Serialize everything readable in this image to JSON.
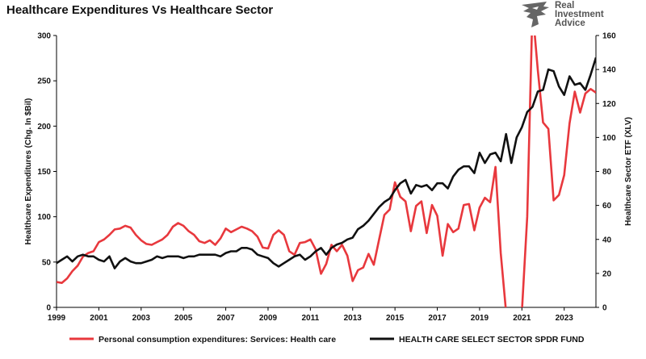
{
  "title": "Healthcare Expenditures Vs Healthcare Sector",
  "logo": {
    "line1": "Real",
    "line2": "Investment",
    "line3": "Advice",
    "color": "#555555"
  },
  "chart_data": {
    "type": "line",
    "title": "Healthcare Expenditures Vs Healthcare Sector",
    "xlabel": "",
    "x_ticks": [
      "1999",
      "2001",
      "2003",
      "2005",
      "2007",
      "2009",
      "2011",
      "2013",
      "2015",
      "2017",
      "2019",
      "2021",
      "2023"
    ],
    "x_range": [
      1999,
      2024.5
    ],
    "y_left": {
      "label": "Healthcare Expenditures (Chg. In $Bil)",
      "range": [
        0,
        300
      ],
      "ticks": [
        0,
        50,
        100,
        150,
        200,
        250,
        300
      ]
    },
    "y_right": {
      "label": "Healthcare Sector ETF (XLV)",
      "range": [
        0,
        160
      ],
      "ticks": [
        0,
        20,
        40,
        60,
        80,
        100,
        120,
        140,
        160
      ]
    },
    "grid": false,
    "legend_position": "bottom",
    "series": [
      {
        "name": "Personal consumption expenditures: Services: Health care",
        "axis": "left",
        "color": "#e8383d",
        "points": [
          [
            1999.0,
            28
          ],
          [
            1999.25,
            27
          ],
          [
            1999.5,
            32
          ],
          [
            1999.75,
            40
          ],
          [
            2000.0,
            46
          ],
          [
            2000.25,
            56
          ],
          [
            2000.5,
            60
          ],
          [
            2000.75,
            62
          ],
          [
            2001.0,
            72
          ],
          [
            2001.25,
            75
          ],
          [
            2001.5,
            80
          ],
          [
            2001.75,
            86
          ],
          [
            2002.0,
            87
          ],
          [
            2002.25,
            90
          ],
          [
            2002.5,
            88
          ],
          [
            2002.75,
            80
          ],
          [
            2003.0,
            74
          ],
          [
            2003.25,
            70
          ],
          [
            2003.5,
            69
          ],
          [
            2003.75,
            72
          ],
          [
            2004.0,
            75
          ],
          [
            2004.25,
            80
          ],
          [
            2004.5,
            89
          ],
          [
            2004.75,
            93
          ],
          [
            2005.0,
            90
          ],
          [
            2005.25,
            84
          ],
          [
            2005.5,
            80
          ],
          [
            2005.75,
            73
          ],
          [
            2006.0,
            71
          ],
          [
            2006.25,
            74
          ],
          [
            2006.5,
            69
          ],
          [
            2006.75,
            76
          ],
          [
            2007.0,
            87
          ],
          [
            2007.25,
            83
          ],
          [
            2007.5,
            86
          ],
          [
            2007.75,
            89
          ],
          [
            2008.0,
            87
          ],
          [
            2008.25,
            84
          ],
          [
            2008.5,
            78
          ],
          [
            2008.75,
            66
          ],
          [
            2009.0,
            65
          ],
          [
            2009.25,
            80
          ],
          [
            2009.5,
            85
          ],
          [
            2009.75,
            80
          ],
          [
            2010.0,
            62
          ],
          [
            2010.25,
            58
          ],
          [
            2010.5,
            71
          ],
          [
            2010.75,
            72
          ],
          [
            2011.0,
            75
          ],
          [
            2011.25,
            64
          ],
          [
            2011.5,
            37
          ],
          [
            2011.75,
            48
          ],
          [
            2012.0,
            69
          ],
          [
            2012.25,
            62
          ],
          [
            2012.5,
            69
          ],
          [
            2012.75,
            57
          ],
          [
            2013.0,
            29
          ],
          [
            2013.25,
            41
          ],
          [
            2013.5,
            44
          ],
          [
            2013.75,
            59
          ],
          [
            2014.0,
            47
          ],
          [
            2014.25,
            75
          ],
          [
            2014.5,
            102
          ],
          [
            2014.75,
            108
          ],
          [
            2015.0,
            138
          ],
          [
            2015.25,
            122
          ],
          [
            2015.5,
            117
          ],
          [
            2015.75,
            84
          ],
          [
            2016.0,
            112
          ],
          [
            2016.25,
            117
          ],
          [
            2016.5,
            82
          ],
          [
            2016.75,
            113
          ],
          [
            2017.0,
            101
          ],
          [
            2017.25,
            57
          ],
          [
            2017.5,
            92
          ],
          [
            2017.75,
            83
          ],
          [
            2018.0,
            87
          ],
          [
            2018.25,
            113
          ],
          [
            2018.5,
            114
          ],
          [
            2018.75,
            85
          ],
          [
            2019.0,
            110
          ],
          [
            2019.25,
            121
          ],
          [
            2019.5,
            116
          ],
          [
            2019.75,
            155
          ],
          [
            2020.0,
            60
          ],
          [
            2020.25,
            -5
          ],
          [
            2020.5,
            -10
          ],
          [
            2020.75,
            -10
          ],
          [
            2021.0,
            -5
          ],
          [
            2021.25,
            100
          ],
          [
            2021.5,
            330
          ],
          [
            2021.75,
            262
          ],
          [
            2022.0,
            204
          ],
          [
            2022.25,
            197
          ],
          [
            2022.5,
            118
          ],
          [
            2022.75,
            124
          ],
          [
            2023.0,
            146
          ],
          [
            2023.25,
            203
          ],
          [
            2023.5,
            238
          ],
          [
            2023.75,
            215
          ],
          [
            2024.0,
            236
          ],
          [
            2024.25,
            241
          ],
          [
            2024.5,
            237
          ]
        ]
      },
      {
        "name": "HEALTH CARE SELECT SECTOR SPDR FUND",
        "axis": "right",
        "color": "#111111",
        "points": [
          [
            1999.0,
            26
          ],
          [
            1999.25,
            28
          ],
          [
            1999.5,
            30
          ],
          [
            1999.75,
            27
          ],
          [
            2000.0,
            30
          ],
          [
            2000.25,
            31
          ],
          [
            2000.5,
            30
          ],
          [
            2000.75,
            30
          ],
          [
            2001.0,
            28
          ],
          [
            2001.25,
            27
          ],
          [
            2001.5,
            30
          ],
          [
            2001.75,
            23
          ],
          [
            2002.0,
            27
          ],
          [
            2002.25,
            29
          ],
          [
            2002.5,
            27
          ],
          [
            2002.75,
            26
          ],
          [
            2003.0,
            26
          ],
          [
            2003.25,
            27
          ],
          [
            2003.5,
            28
          ],
          [
            2003.75,
            30
          ],
          [
            2004.0,
            29
          ],
          [
            2004.25,
            30
          ],
          [
            2004.5,
            30
          ],
          [
            2004.75,
            30
          ],
          [
            2005.0,
            29
          ],
          [
            2005.25,
            30
          ],
          [
            2005.5,
            30
          ],
          [
            2005.75,
            31
          ],
          [
            2006.0,
            31
          ],
          [
            2006.25,
            31
          ],
          [
            2006.5,
            31
          ],
          [
            2006.75,
            30
          ],
          [
            2007.0,
            32
          ],
          [
            2007.25,
            33
          ],
          [
            2007.5,
            33
          ],
          [
            2007.75,
            35
          ],
          [
            2008.0,
            35
          ],
          [
            2008.25,
            34
          ],
          [
            2008.5,
            31
          ],
          [
            2008.75,
            30
          ],
          [
            2009.0,
            29
          ],
          [
            2009.25,
            26
          ],
          [
            2009.5,
            24
          ],
          [
            2009.75,
            26
          ],
          [
            2010.0,
            28
          ],
          [
            2010.25,
            30
          ],
          [
            2010.5,
            31
          ],
          [
            2010.75,
            28
          ],
          [
            2011.0,
            30
          ],
          [
            2011.25,
            33
          ],
          [
            2011.5,
            35
          ],
          [
            2011.75,
            31
          ],
          [
            2012.0,
            35
          ],
          [
            2012.25,
            37
          ],
          [
            2012.5,
            38
          ],
          [
            2012.75,
            40
          ],
          [
            2013.0,
            41
          ],
          [
            2013.25,
            46
          ],
          [
            2013.5,
            48
          ],
          [
            2013.75,
            51
          ],
          [
            2014.0,
            55
          ],
          [
            2014.25,
            59
          ],
          [
            2014.5,
            62
          ],
          [
            2014.75,
            64
          ],
          [
            2015.0,
            69
          ],
          [
            2015.25,
            73
          ],
          [
            2015.5,
            75
          ],
          [
            2015.75,
            67
          ],
          [
            2016.0,
            72
          ],
          [
            2016.25,
            71
          ],
          [
            2016.5,
            72
          ],
          [
            2016.75,
            69
          ],
          [
            2017.0,
            73
          ],
          [
            2017.25,
            73
          ],
          [
            2017.5,
            70
          ],
          [
            2017.75,
            77
          ],
          [
            2018.0,
            81
          ],
          [
            2018.25,
            83
          ],
          [
            2018.5,
            83
          ],
          [
            2018.75,
            79
          ],
          [
            2019.0,
            91
          ],
          [
            2019.25,
            85
          ],
          [
            2019.5,
            90
          ],
          [
            2019.75,
            91
          ],
          [
            2020.0,
            86
          ],
          [
            2020.25,
            102
          ],
          [
            2020.5,
            85
          ],
          [
            2020.75,
            100
          ],
          [
            2021.0,
            106
          ],
          [
            2021.25,
            115
          ],
          [
            2021.5,
            118
          ],
          [
            2021.75,
            127
          ],
          [
            2022.0,
            128
          ],
          [
            2022.25,
            140
          ],
          [
            2022.5,
            139
          ],
          [
            2022.75,
            130
          ],
          [
            2023.0,
            125
          ],
          [
            2023.25,
            136
          ],
          [
            2023.5,
            131
          ],
          [
            2023.75,
            132
          ],
          [
            2024.0,
            128
          ],
          [
            2024.25,
            137
          ],
          [
            2024.5,
            147
          ]
        ]
      }
    ]
  }
}
